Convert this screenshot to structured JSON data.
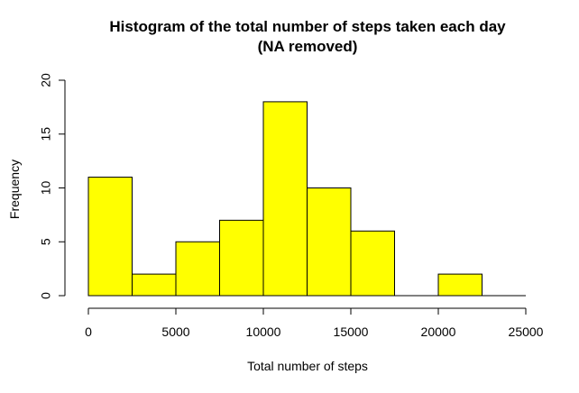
{
  "chart_data": {
    "type": "bar",
    "title": "Histogram of the total number of steps taken each day",
    "subtitle": "(NA removed)",
    "xlabel": "Total number of steps",
    "ylabel": "Frequency",
    "bins": [
      {
        "from": 0,
        "to": 2500,
        "count": 11
      },
      {
        "from": 2500,
        "to": 5000,
        "count": 2
      },
      {
        "from": 5000,
        "to": 7500,
        "count": 5
      },
      {
        "from": 7500,
        "to": 10000,
        "count": 7
      },
      {
        "from": 10000,
        "to": 12500,
        "count": 18
      },
      {
        "from": 12500,
        "to": 15000,
        "count": 10
      },
      {
        "from": 15000,
        "to": 17500,
        "count": 6
      },
      {
        "from": 17500,
        "to": 20000,
        "count": 0
      },
      {
        "from": 20000,
        "to": 22500,
        "count": 2
      },
      {
        "from": 22500,
        "to": 25000,
        "count": 0
      }
    ],
    "xlim": [
      0,
      25000
    ],
    "ylim": [
      0,
      20
    ],
    "xticks": [
      "0",
      "5000",
      "10000",
      "15000",
      "20000",
      "25000"
    ],
    "yticks": [
      "0",
      "5",
      "10",
      "15",
      "20"
    ],
    "bar_color": "#ffff00",
    "grid": false,
    "legend": "none"
  }
}
